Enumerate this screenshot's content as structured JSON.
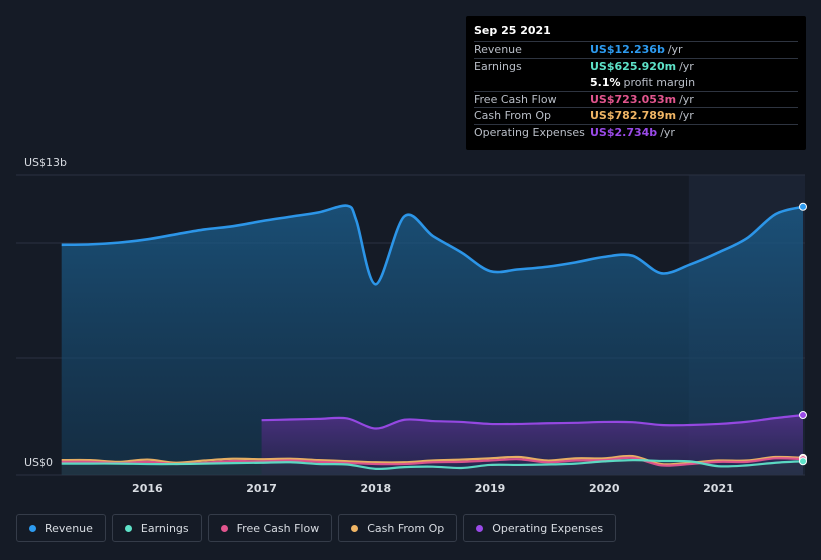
{
  "tooltip": {
    "date": "Sep 25 2021",
    "rows": [
      {
        "label": "Revenue",
        "value": "US$12.236b",
        "unit": "/yr",
        "color": "#2d9bf0"
      },
      {
        "label": "Earnings",
        "value": "US$625.920m",
        "unit": "/yr",
        "color": "#5ee2c8"
      },
      {
        "label": "",
        "value": "5.1%",
        "unit": "profit margin",
        "color": "#ffffff"
      },
      {
        "label": "Free Cash Flow",
        "value": "US$723.053m",
        "unit": "/yr",
        "color": "#e2558e"
      },
      {
        "label": "Cash From Op",
        "value": "US$782.789m",
        "unit": "/yr",
        "color": "#f0b565"
      },
      {
        "label": "Operating Expenses",
        "value": "US$2.734b",
        "unit": "/yr",
        "color": "#9a4ae8"
      }
    ]
  },
  "legend": [
    {
      "label": "Revenue",
      "color": "#2d9bf0"
    },
    {
      "label": "Earnings",
      "color": "#5ee2c8"
    },
    {
      "label": "Free Cash Flow",
      "color": "#e2558e"
    },
    {
      "label": "Cash From Op",
      "color": "#f0b565"
    },
    {
      "label": "Operating Expenses",
      "color": "#9a4ae8"
    }
  ],
  "chart_data": {
    "type": "area",
    "ylabel_top": "US$13b",
    "ylabel_bottom": "US$0",
    "ylim": [
      0,
      13
    ],
    "xlim": [
      2015.13,
      2021.74
    ],
    "highlight_start": 2020.74,
    "x_ticks": [
      {
        "value": 2016,
        "label": "2016"
      },
      {
        "value": 2017,
        "label": "2017"
      },
      {
        "value": 2018,
        "label": "2018"
      },
      {
        "value": 2019,
        "label": "2019"
      },
      {
        "value": 2020,
        "label": "2020"
      },
      {
        "value": 2021,
        "label": "2021"
      }
    ],
    "series": [
      {
        "name": "Revenue",
        "color": "#2d9bf0",
        "fill": true,
        "points": [
          [
            2015.25,
            10.5
          ],
          [
            2015.5,
            10.52
          ],
          [
            2015.75,
            10.6
          ],
          [
            2016.0,
            10.75
          ],
          [
            2016.25,
            10.98
          ],
          [
            2016.5,
            11.2
          ],
          [
            2016.75,
            11.35
          ],
          [
            2017.0,
            11.58
          ],
          [
            2017.25,
            11.78
          ],
          [
            2017.5,
            11.98
          ],
          [
            2017.75,
            12.28
          ],
          [
            2017.83,
            11.6
          ],
          [
            2018.0,
            8.7
          ],
          [
            2018.25,
            11.8
          ],
          [
            2018.5,
            10.9
          ],
          [
            2018.75,
            10.15
          ],
          [
            2019.0,
            9.3
          ],
          [
            2019.25,
            9.38
          ],
          [
            2019.5,
            9.5
          ],
          [
            2019.75,
            9.7
          ],
          [
            2020.0,
            9.95
          ],
          [
            2020.25,
            10.0
          ],
          [
            2020.5,
            9.2
          ],
          [
            2020.75,
            9.6
          ],
          [
            2021.0,
            10.15
          ],
          [
            2021.25,
            10.8
          ],
          [
            2021.5,
            11.9
          ],
          [
            2021.74,
            12.236
          ]
        ]
      },
      {
        "name": "Operating Expenses",
        "color": "#9a4ae8",
        "fill": true,
        "points": [
          [
            2017.0,
            2.5
          ],
          [
            2017.25,
            2.53
          ],
          [
            2017.5,
            2.56
          ],
          [
            2017.75,
            2.58
          ],
          [
            2018.0,
            2.12
          ],
          [
            2018.25,
            2.52
          ],
          [
            2018.5,
            2.46
          ],
          [
            2018.75,
            2.42
          ],
          [
            2019.0,
            2.33
          ],
          [
            2019.25,
            2.33
          ],
          [
            2019.5,
            2.36
          ],
          [
            2019.75,
            2.38
          ],
          [
            2020.0,
            2.42
          ],
          [
            2020.25,
            2.41
          ],
          [
            2020.5,
            2.28
          ],
          [
            2020.75,
            2.28
          ],
          [
            2021.0,
            2.33
          ],
          [
            2021.25,
            2.43
          ],
          [
            2021.5,
            2.6
          ],
          [
            2021.74,
            2.734
          ]
        ]
      },
      {
        "name": "Cash From Op",
        "color": "#f0b565",
        "fill": false,
        "points": [
          [
            2015.25,
            0.68
          ],
          [
            2015.5,
            0.68
          ],
          [
            2015.75,
            0.6
          ],
          [
            2016.0,
            0.7
          ],
          [
            2016.25,
            0.56
          ],
          [
            2016.5,
            0.66
          ],
          [
            2016.75,
            0.74
          ],
          [
            2017.0,
            0.72
          ],
          [
            2017.25,
            0.74
          ],
          [
            2017.5,
            0.68
          ],
          [
            2017.75,
            0.63
          ],
          [
            2018.0,
            0.58
          ],
          [
            2018.25,
            0.58
          ],
          [
            2018.5,
            0.66
          ],
          [
            2018.75,
            0.7
          ],
          [
            2019.0,
            0.76
          ],
          [
            2019.25,
            0.82
          ],
          [
            2019.5,
            0.66
          ],
          [
            2019.75,
            0.76
          ],
          [
            2020.0,
            0.76
          ],
          [
            2020.25,
            0.86
          ],
          [
            2020.5,
            0.5
          ],
          [
            2020.75,
            0.56
          ],
          [
            2021.0,
            0.66
          ],
          [
            2021.25,
            0.66
          ],
          [
            2021.5,
            0.82
          ],
          [
            2021.74,
            0.783
          ]
        ]
      },
      {
        "name": "Free Cash Flow",
        "color": "#e2558e",
        "fill": false,
        "points": [
          [
            2015.25,
            0.6
          ],
          [
            2015.5,
            0.6
          ],
          [
            2015.75,
            0.54
          ],
          [
            2016.0,
            0.6
          ],
          [
            2016.25,
            0.5
          ],
          [
            2016.5,
            0.56
          ],
          [
            2016.75,
            0.64
          ],
          [
            2017.0,
            0.62
          ],
          [
            2017.25,
            0.66
          ],
          [
            2017.5,
            0.6
          ],
          [
            2017.75,
            0.55
          ],
          [
            2018.0,
            0.5
          ],
          [
            2018.25,
            0.5
          ],
          [
            2018.5,
            0.58
          ],
          [
            2018.75,
            0.6
          ],
          [
            2019.0,
            0.66
          ],
          [
            2019.25,
            0.72
          ],
          [
            2019.5,
            0.58
          ],
          [
            2019.75,
            0.66
          ],
          [
            2020.0,
            0.68
          ],
          [
            2020.25,
            0.78
          ],
          [
            2020.5,
            0.44
          ],
          [
            2020.75,
            0.5
          ],
          [
            2021.0,
            0.6
          ],
          [
            2021.25,
            0.6
          ],
          [
            2021.5,
            0.76
          ],
          [
            2021.74,
            0.723
          ]
        ]
      },
      {
        "name": "Earnings",
        "color": "#5ee2c8",
        "fill": true,
        "points": [
          [
            2015.25,
            0.52
          ],
          [
            2015.5,
            0.52
          ],
          [
            2015.75,
            0.52
          ],
          [
            2016.0,
            0.5
          ],
          [
            2016.25,
            0.5
          ],
          [
            2016.5,
            0.52
          ],
          [
            2016.75,
            0.54
          ],
          [
            2017.0,
            0.56
          ],
          [
            2017.25,
            0.58
          ],
          [
            2017.5,
            0.5
          ],
          [
            2017.75,
            0.48
          ],
          [
            2018.0,
            0.28
          ],
          [
            2018.25,
            0.36
          ],
          [
            2018.5,
            0.38
          ],
          [
            2018.75,
            0.32
          ],
          [
            2019.0,
            0.46
          ],
          [
            2019.25,
            0.46
          ],
          [
            2019.5,
            0.48
          ],
          [
            2019.75,
            0.52
          ],
          [
            2020.0,
            0.62
          ],
          [
            2020.25,
            0.68
          ],
          [
            2020.5,
            0.64
          ],
          [
            2020.75,
            0.62
          ],
          [
            2021.0,
            0.4
          ],
          [
            2021.25,
            0.44
          ],
          [
            2021.5,
            0.56
          ],
          [
            2021.74,
            0.626
          ]
        ]
      }
    ]
  }
}
